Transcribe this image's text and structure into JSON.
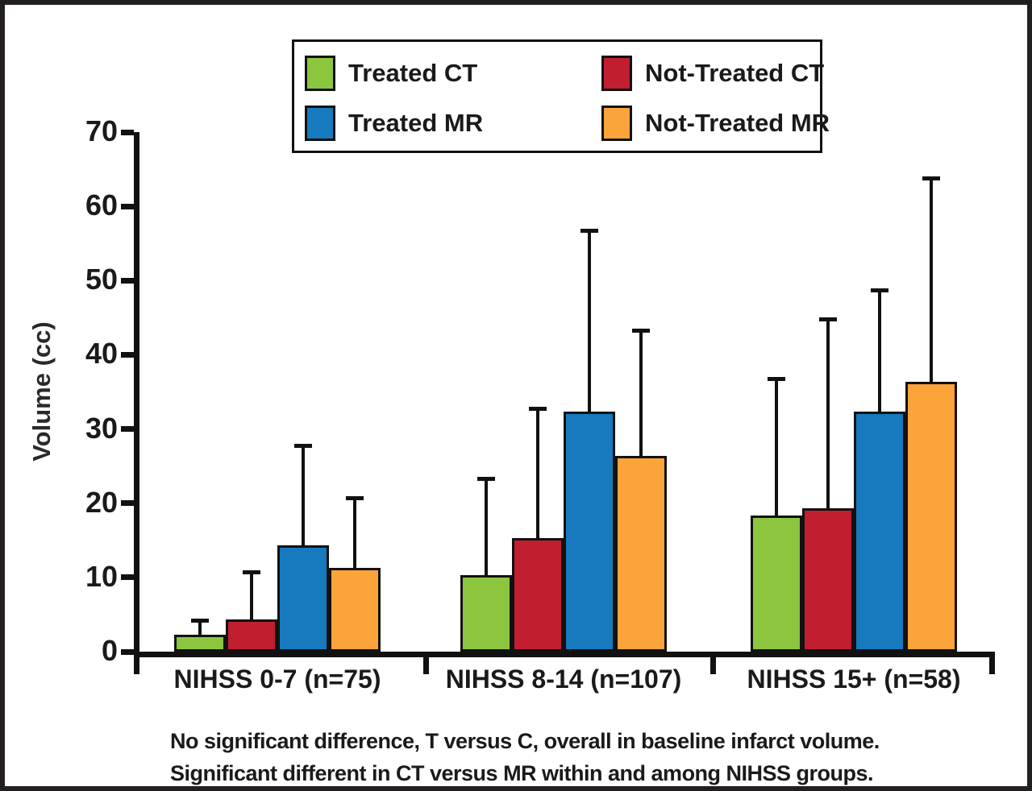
{
  "figure": {
    "footnote_line1": "No significant difference, T versus C, overall in baseline infarct volume.",
    "footnote_line2": "Significant different in CT versus MR within and among NIHSS groups."
  },
  "colors": {
    "frame": "#231f20",
    "axis": "#111111",
    "background": "#ffffff",
    "treated_ct": "#8CC63F",
    "not_treated_ct": "#C11E2F",
    "treated_mr": "#1779BE",
    "not_treated_mr": "#FAA43A"
  },
  "chart_data": {
    "type": "bar",
    "title": "",
    "xlabel": "",
    "ylabel": "Volume (cc)",
    "ylim": [
      0,
      70
    ],
    "yticks": [
      0,
      10,
      20,
      30,
      40,
      50,
      60,
      70
    ],
    "grid": false,
    "legend_position": "top-center",
    "error_bars": "upper-only",
    "categories": [
      "NIHSS 0-7 (n=75)",
      "NIHSS 8-14 (n=107)",
      "NIHSS 15+ (n=58)"
    ],
    "series": [
      {
        "name": "Treated CT",
        "color": "#8CC63F",
        "values": [
          2,
          10,
          18
        ],
        "error_top": [
          4.5,
          23.5,
          37
        ]
      },
      {
        "name": "Not-Treated CT",
        "color": "#C11E2F",
        "values": [
          4,
          15,
          19
        ],
        "error_top": [
          11,
          33,
          45
        ]
      },
      {
        "name": "Treated MR",
        "color": "#1779BE",
        "values": [
          14,
          32,
          32
        ],
        "error_top": [
          28,
          57,
          49
        ]
      },
      {
        "name": "Not-Treated MR",
        "color": "#FAA43A",
        "values": [
          11,
          26,
          36
        ],
        "error_top": [
          21,
          43.5,
          64
        ]
      }
    ]
  }
}
